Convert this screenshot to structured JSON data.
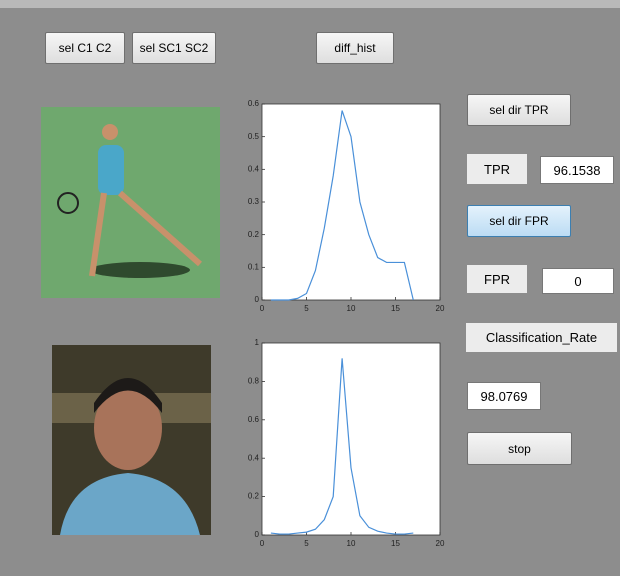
{
  "buttons": [
    "sel C1 C2",
    "sel SC1 SC2",
    "diff_hist",
    "sel dir TPR",
    "sel dir FPR",
    "stop"
  ],
  "labels": {
    "tpr": "TPR",
    "tpr_value": "96.1538",
    "fpr": "FPR",
    "fpr_value": "0",
    "classification_rate": "Classification_Rate",
    "classification_value": "98.0769"
  },
  "chart_data": [
    {
      "type": "line",
      "x": [
        1,
        2,
        3,
        4,
        5,
        6,
        7,
        8,
        9,
        10,
        11,
        12,
        13,
        14,
        15,
        16,
        17
      ],
      "series": [
        {
          "color": "#4a90d9",
          "values": [
            0,
            0,
            0,
            0.005,
            0.02,
            0.09,
            0.22,
            0.38,
            0.58,
            0.5,
            0.3,
            0.2,
            0.13,
            0.115,
            0.115,
            0.115,
            0
          ]
        }
      ],
      "xlim": [
        0,
        20
      ],
      "ylim": [
        0,
        0.6
      ],
      "xticks": [
        0,
        5,
        10,
        15,
        20
      ],
      "yticks": [
        0,
        0.1,
        0.2,
        0.3,
        0.4,
        0.5,
        0.6
      ]
    },
    {
      "type": "line",
      "x": [
        1,
        2,
        3,
        4,
        5,
        6,
        7,
        8,
        9,
        10,
        11,
        12,
        13,
        14,
        15,
        16,
        17
      ],
      "series": [
        {
          "color": "#4a90d9",
          "values": [
            0.01,
            0.005,
            0.005,
            0.01,
            0.015,
            0.03,
            0.08,
            0.2,
            0.92,
            0.35,
            0.1,
            0.04,
            0.02,
            0.01,
            0.005,
            0.005,
            0.01
          ]
        }
      ],
      "xlim": [
        0,
        20
      ],
      "ylim": [
        0,
        1
      ],
      "xticks": [
        0,
        5,
        10,
        15,
        20
      ],
      "yticks": [
        0,
        0.2,
        0.4,
        0.6,
        0.8,
        1
      ]
    }
  ]
}
